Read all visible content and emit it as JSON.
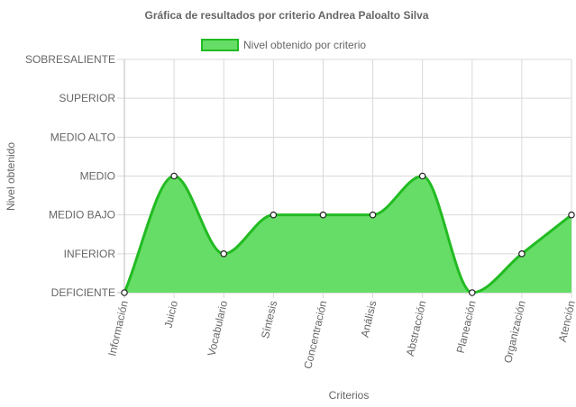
{
  "chart_data": {
    "type": "area",
    "title": "Gráfica de resultados por criterio Andrea Paloalto Silva",
    "xlabel": "Criterios",
    "ylabel": "Nivel obtenido",
    "categories": [
      "Información",
      "Juicio",
      "Vocabulario",
      "Síntesis",
      "Concentración",
      "Análisis",
      "Abstracción",
      "Planeación",
      "Organización",
      "Atención"
    ],
    "y_levels": [
      "DEFICIENTE",
      "INFERIOR",
      "MEDIO BAJO",
      "MEDIO",
      "MEDIO ALTO",
      "SUPERIOR",
      "SOBRESALIENTE"
    ],
    "ylim": [
      0,
      6
    ],
    "grid": true,
    "legend_position": "top",
    "series": [
      {
        "name": "Nivel obtenido por criterio",
        "values": [
          0,
          3,
          1,
          2,
          2,
          2,
          3,
          0,
          1,
          2
        ],
        "fill_color": "#66dd66",
        "line_color": "#22bb22"
      }
    ]
  }
}
